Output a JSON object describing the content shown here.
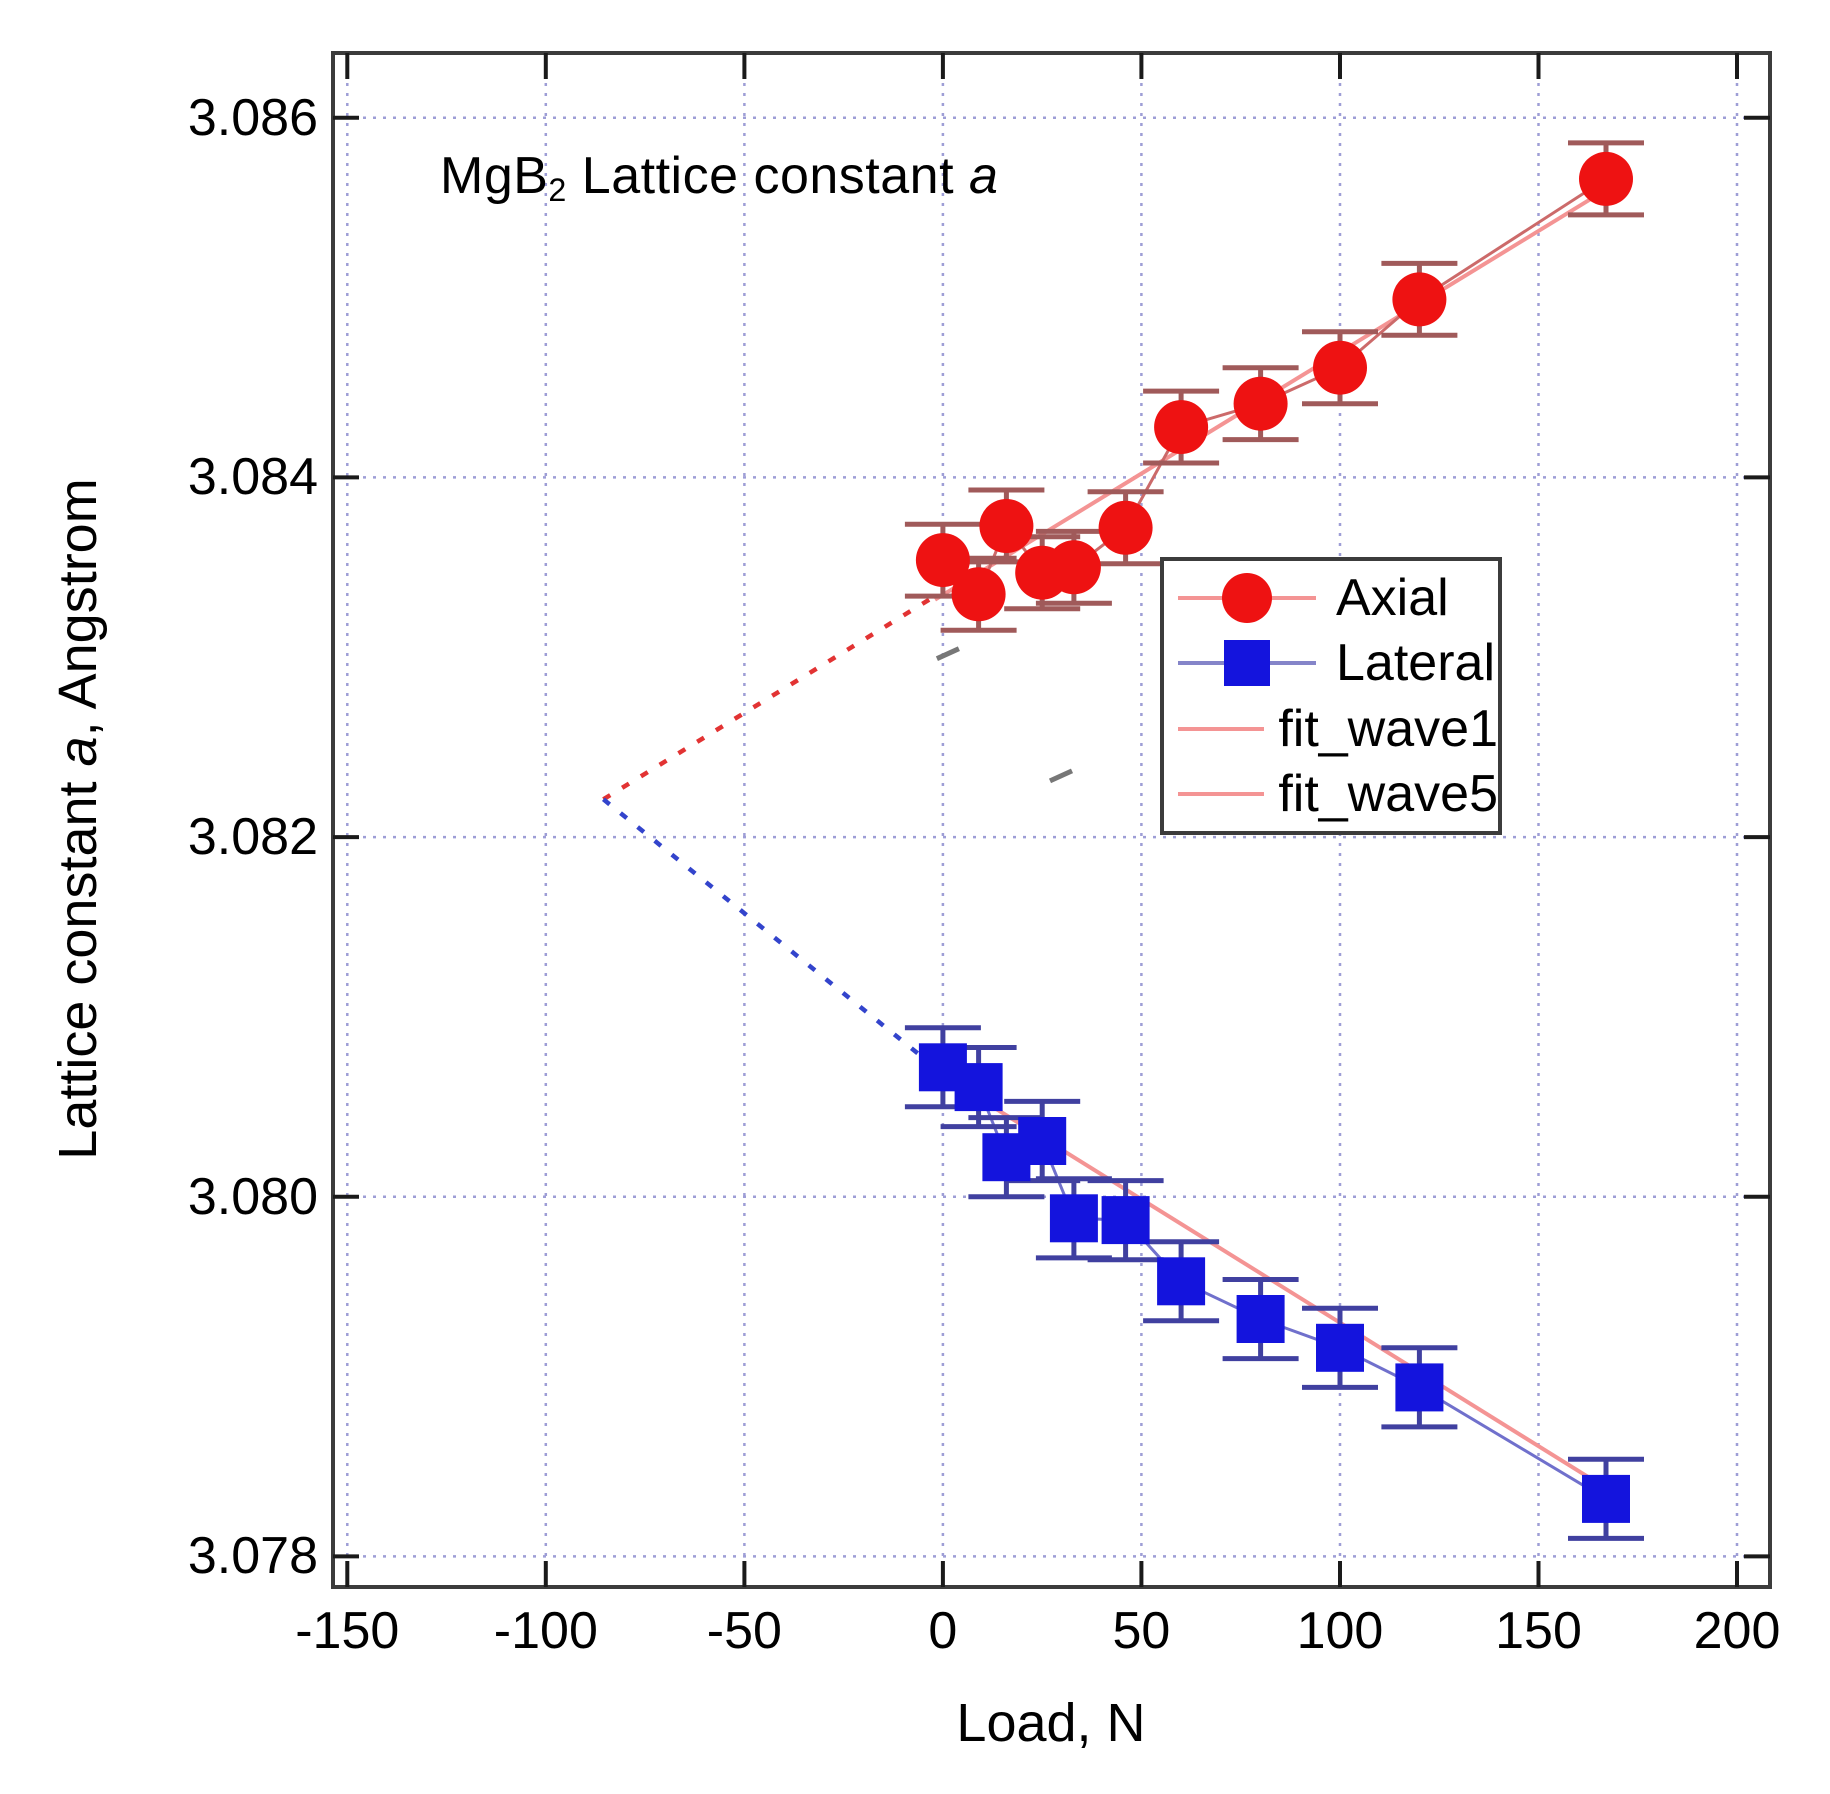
{
  "title": {
    "prefix": "MgB",
    "subscript": "2",
    "rest": " Lattice constant ",
    "italic_suffix": "a"
  },
  "y_axis": {
    "label_pre": "Lattice constant ",
    "label_italic": "a",
    "label_post": ", Angstrom",
    "min": 3.07783,
    "max": 3.08636,
    "tick_values": [
      3.078,
      3.08,
      3.082,
      3.084,
      3.086
    ],
    "tick_labels": [
      "3.078",
      "3.080",
      "3.082",
      "3.084",
      "3.086"
    ]
  },
  "x_axis": {
    "label": "Load, N",
    "min": -153.6,
    "max": 208.3,
    "tick_values": [
      -150,
      -100,
      -50,
      0,
      50,
      100,
      150,
      200
    ],
    "tick_labels": [
      "-150",
      "-100",
      "-50",
      "0",
      "50",
      "100",
      "150",
      "200"
    ]
  },
  "legend": {
    "items": [
      {
        "label": "Axial",
        "marker": "circle",
        "marker_color": "#ee1212",
        "line_color": "#f49494"
      },
      {
        "label": "Lateral",
        "marker": "square",
        "marker_color": "#1414dd",
        "line_color": "#8585c9"
      },
      {
        "label": "fit_wave1",
        "marker": "none",
        "marker_color": "",
        "line_color": "#f49494"
      },
      {
        "label": "fit_wave5",
        "marker": "none",
        "marker_color": "",
        "line_color": "#f49494"
      }
    ]
  },
  "colors": {
    "axial_marker": "#ee1212",
    "axial_line": "#cc6a6a",
    "axial_error": "#a05a5a",
    "lateral_marker": "#1414dd",
    "lateral_line": "#7070cc",
    "lateral_error": "#4040a0",
    "fit_line": "#f49494",
    "axial_dash": "#e23333",
    "lateral_dash": "#3344cc",
    "grid": "#9e9ed6",
    "frame": "#3c3c3c",
    "tick": "#1a1a1a",
    "artifact": "#777777"
  },
  "chart_data": {
    "type": "scatter",
    "title": "MgB2 Lattice constant a",
    "xlabel": "Load, N",
    "ylabel": "Lattice constant a, Angstrom",
    "xlim": [
      -153.6,
      208.3
    ],
    "ylim": [
      3.07783,
      3.08636
    ],
    "grid": true,
    "legend_position": "middle-right",
    "series": [
      {
        "name": "Axial",
        "marker": "circle",
        "color": "#ee1212",
        "error_y": 0.0002,
        "x": [
          0,
          9,
          16,
          25,
          33,
          46,
          60,
          80,
          100,
          120,
          167
        ],
        "y": [
          3.08354,
          3.08335,
          3.08373,
          3.08347,
          3.0835,
          3.08372,
          3.08428,
          3.08441,
          3.08461,
          3.08499,
          3.08566
        ]
      },
      {
        "name": "Lateral",
        "marker": "square",
        "color": "#1414dd",
        "error_y": 0.00022,
        "x": [
          0,
          9,
          16,
          25,
          33,
          46,
          60,
          80,
          100,
          120,
          167
        ],
        "y": [
          3.08072,
          3.08061,
          3.08022,
          3.08031,
          3.07988,
          3.07987,
          3.07953,
          3.07932,
          3.07916,
          3.07894,
          3.07832
        ]
      }
    ],
    "fits": [
      {
        "name": "fit_wave1",
        "x1": -2,
        "y1": 3.08332,
        "x2": 167,
        "y2": 3.0856
      },
      {
        "name": "fit_wave5",
        "x1": -2,
        "y1": 3.0807,
        "x2": 167,
        "y2": 3.07838
      }
    ],
    "extrapolations": [
      {
        "name": "axial-dashed",
        "x1": -85.5,
        "y1": 3.08221,
        "x2": -2,
        "y2": 3.08334
      },
      {
        "name": "lateral-dashed",
        "x1": -85.5,
        "y1": 3.08221,
        "x2": -2,
        "y2": 3.08072
      }
    ],
    "convergence_point": {
      "x": -85.5,
      "y": 3.08221
    },
    "artifacts": [
      {
        "x": 1.0,
        "y": 3.08302
      },
      {
        "x": 29.5,
        "y": 3.08234
      }
    ]
  }
}
